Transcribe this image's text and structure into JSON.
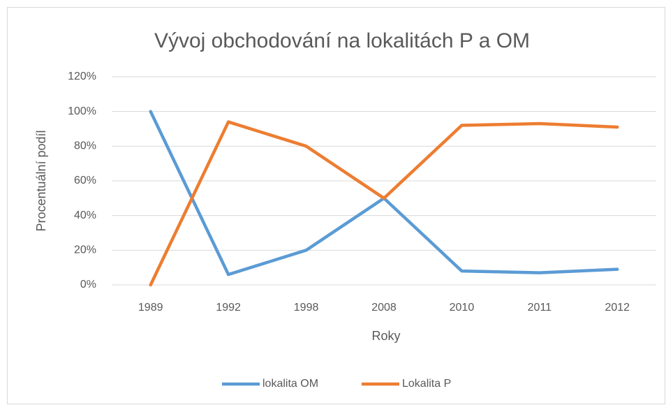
{
  "chart_data": {
    "type": "line",
    "title": "Vývoj obchodování na lokalitách P a OM",
    "x_label": "Roky",
    "y_label": "Procentuální podíl",
    "categories": [
      "1989",
      "1992",
      "1998",
      "2008",
      "2010",
      "2011",
      "2012"
    ],
    "series": [
      {
        "name": "lokalita OM",
        "color": "#5b9bd5",
        "values": [
          100,
          6,
          20,
          50,
          8,
          7,
          9
        ]
      },
      {
        "name": "Lokalita P",
        "color": "#ed7d31",
        "values": [
          0,
          94,
          80,
          50,
          92,
          93,
          91
        ]
      }
    ],
    "ylim": [
      0,
      120
    ],
    "yticks": [
      {
        "value": 0,
        "label": "0%"
      },
      {
        "value": 20,
        "label": "20%"
      },
      {
        "value": 40,
        "label": "40%"
      },
      {
        "value": 60,
        "label": "60%"
      },
      {
        "value": 80,
        "label": "80%"
      },
      {
        "value": 100,
        "label": "100%"
      },
      {
        "value": 120,
        "label": "120%"
      }
    ],
    "grid": true,
    "legend": "bottom"
  }
}
